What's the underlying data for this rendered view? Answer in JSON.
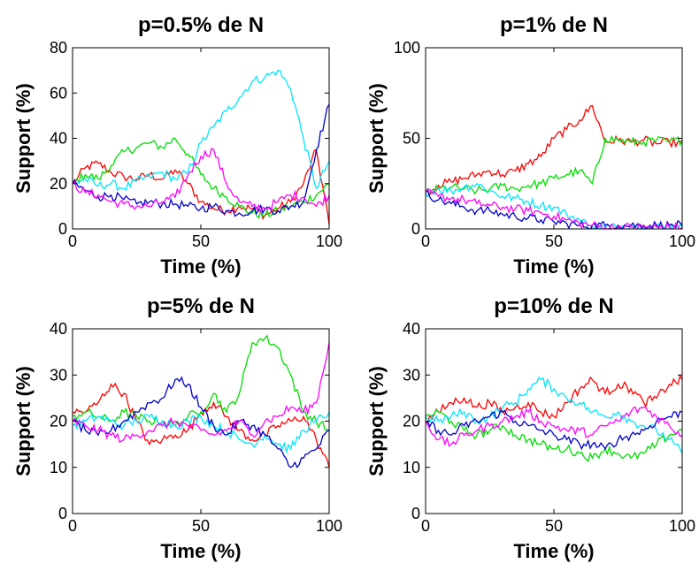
{
  "chart_data": [
    {
      "type": "line",
      "title": "p=0.5% de N",
      "xlabel": "Time (%)",
      "ylabel": "Support (%)",
      "xlim": [
        0,
        100
      ],
      "ylim": [
        0,
        80
      ],
      "xticks": [
        0,
        50,
        100
      ],
      "yticks": [
        0,
        20,
        40,
        60,
        80
      ],
      "x": [
        0,
        5,
        10,
        15,
        20,
        25,
        30,
        35,
        40,
        45,
        50,
        55,
        60,
        65,
        70,
        75,
        80,
        85,
        90,
        95,
        100
      ],
      "series": [
        {
          "color": "#ff0000",
          "values": [
            20,
            27,
            29,
            25,
            23,
            22,
            24,
            22,
            26,
            20,
            12,
            9,
            8,
            10,
            9,
            6,
            9,
            12,
            20,
            35,
            2
          ]
        },
        {
          "color": "#00dd00",
          "values": [
            20,
            24,
            22,
            28,
            34,
            36,
            38,
            36,
            40,
            33,
            24,
            18,
            14,
            10,
            7,
            6,
            8,
            10,
            12,
            15,
            20
          ]
        },
        {
          "color": "#00e5ff",
          "values": [
            20,
            22,
            19,
            20,
            18,
            21,
            23,
            25,
            22,
            25,
            38,
            45,
            52,
            58,
            65,
            67,
            70,
            62,
            40,
            18,
            30
          ]
        },
        {
          "color": "#0000cc",
          "values": [
            20,
            17,
            14,
            15,
            13,
            11,
            12,
            11,
            11,
            10,
            9,
            10,
            8,
            7,
            8,
            9,
            8,
            10,
            12,
            35,
            55
          ]
        },
        {
          "color": "#ff00ff",
          "values": [
            20,
            16,
            15,
            12,
            11,
            10,
            10,
            12,
            14,
            24,
            32,
            35,
            20,
            12,
            10,
            9,
            12,
            15,
            14,
            10,
            15
          ]
        }
      ]
    },
    {
      "type": "line",
      "title": "p=1% de N",
      "xlabel": "Time (%)",
      "ylabel": "Support (%)",
      "xlim": [
        0,
        100
      ],
      "ylim": [
        0,
        100
      ],
      "xticks": [
        0,
        50,
        100
      ],
      "yticks": [
        0,
        50,
        100
      ],
      "x": [
        0,
        5,
        10,
        15,
        20,
        25,
        30,
        35,
        40,
        45,
        50,
        55,
        60,
        65,
        70,
        75,
        80,
        85,
        90,
        95,
        100
      ],
      "series": [
        {
          "color": "#ff0000",
          "values": [
            20,
            24,
            26,
            28,
            30,
            32,
            30,
            32,
            36,
            40,
            50,
            55,
            60,
            68,
            48,
            49,
            48,
            49,
            47,
            48,
            47
          ]
        },
        {
          "color": "#00dd00",
          "values": [
            20,
            22,
            23,
            22,
            21,
            22,
            24,
            22,
            24,
            25,
            28,
            30,
            32,
            25,
            50,
            49,
            48,
            48,
            49,
            48,
            49
          ]
        },
        {
          "color": "#00e5ff",
          "values": [
            20,
            22,
            21,
            23,
            25,
            21,
            18,
            17,
            15,
            13,
            12,
            8,
            5,
            1,
            1,
            1,
            2,
            1,
            1,
            1,
            1
          ]
        },
        {
          "color": "#0000cc",
          "values": [
            20,
            16,
            14,
            12,
            10,
            10,
            8,
            7,
            6,
            5,
            4,
            3,
            2,
            2,
            2,
            2,
            2,
            2,
            2,
            2,
            2
          ]
        },
        {
          "color": "#ff00ff",
          "values": [
            20,
            18,
            17,
            16,
            14,
            13,
            12,
            11,
            10,
            9,
            7,
            5,
            3,
            2,
            1,
            1,
            1,
            1,
            1,
            1,
            1
          ]
        }
      ]
    },
    {
      "type": "line",
      "title": "p=5% de N",
      "xlabel": "Time (%)",
      "ylabel": "Support (%)",
      "xlim": [
        0,
        100
      ],
      "ylim": [
        0,
        40
      ],
      "xticks": [
        0,
        50,
        100
      ],
      "yticks": [
        0,
        10,
        20,
        30,
        40
      ],
      "x": [
        0,
        5,
        10,
        15,
        20,
        25,
        30,
        35,
        40,
        45,
        50,
        55,
        60,
        65,
        70,
        75,
        80,
        85,
        90,
        95,
        100
      ],
      "series": [
        {
          "color": "#ff0000",
          "values": [
            22,
            22,
            24,
            28,
            26,
            20,
            15,
            16,
            17,
            18,
            22,
            24,
            21,
            18,
            16,
            17,
            19,
            20,
            21,
            16,
            10
          ]
        },
        {
          "color": "#00dd00",
          "values": [
            21,
            22,
            21,
            20,
            22,
            21,
            20,
            20,
            19,
            21,
            22,
            26,
            22,
            26,
            37,
            38,
            36,
            30,
            22,
            20,
            18
          ]
        },
        {
          "color": "#00e5ff",
          "values": [
            19,
            20,
            21,
            20,
            19,
            20,
            21,
            20,
            19,
            20,
            21,
            19,
            18,
            16,
            15,
            17,
            15,
            14,
            18,
            20,
            22
          ]
        },
        {
          "color": "#0000cc",
          "values": [
            20,
            18,
            17,
            18,
            20,
            22,
            24,
            25,
            29,
            28,
            23,
            19,
            17,
            20,
            19,
            17,
            14,
            10,
            12,
            14,
            18
          ]
        },
        {
          "color": "#ff00ff",
          "values": [
            20,
            19,
            18,
            17,
            16,
            17,
            18,
            19,
            20,
            19,
            18,
            17,
            18,
            20,
            17,
            20,
            21,
            23,
            22,
            24,
            37
          ]
        }
      ]
    },
    {
      "type": "line",
      "title": "p=10% de N",
      "xlabel": "Time (%)",
      "ylabel": "Support (%)",
      "xlim": [
        0,
        100
      ],
      "ylim": [
        0,
        40
      ],
      "xticks": [
        0,
        50,
        100
      ],
      "yticks": [
        0,
        10,
        20,
        30,
        40
      ],
      "x": [
        0,
        5,
        10,
        15,
        20,
        25,
        30,
        35,
        40,
        45,
        50,
        55,
        60,
        65,
        70,
        75,
        80,
        85,
        90,
        95,
        100
      ],
      "series": [
        {
          "color": "#ff0000",
          "values": [
            20,
            22,
            24,
            25,
            23,
            24,
            22,
            23,
            24,
            22,
            21,
            24,
            27,
            29,
            26,
            28,
            27,
            24,
            25,
            28,
            29
          ]
        },
        {
          "color": "#00dd00",
          "values": [
            21,
            22,
            20,
            18,
            17,
            18,
            19,
            17,
            16,
            15,
            14,
            14,
            13,
            12,
            14,
            13,
            12,
            13,
            15,
            17,
            18
          ]
        },
        {
          "color": "#00e5ff",
          "values": [
            21,
            20,
            21,
            22,
            20,
            21,
            23,
            24,
            27,
            29,
            27,
            25,
            24,
            22,
            21,
            22,
            20,
            19,
            18,
            16,
            13
          ]
        },
        {
          "color": "#0000cc",
          "values": [
            20,
            18,
            17,
            19,
            20,
            21,
            22,
            20,
            19,
            18,
            17,
            16,
            15,
            15,
            14,
            16,
            17,
            18,
            20,
            21,
            22
          ]
        },
        {
          "color": "#ff00ff",
          "values": [
            20,
            16,
            15,
            17,
            18,
            19,
            20,
            21,
            22,
            20,
            19,
            18,
            18,
            17,
            19,
            20,
            22,
            23,
            21,
            19,
            17
          ]
        }
      ]
    }
  ]
}
